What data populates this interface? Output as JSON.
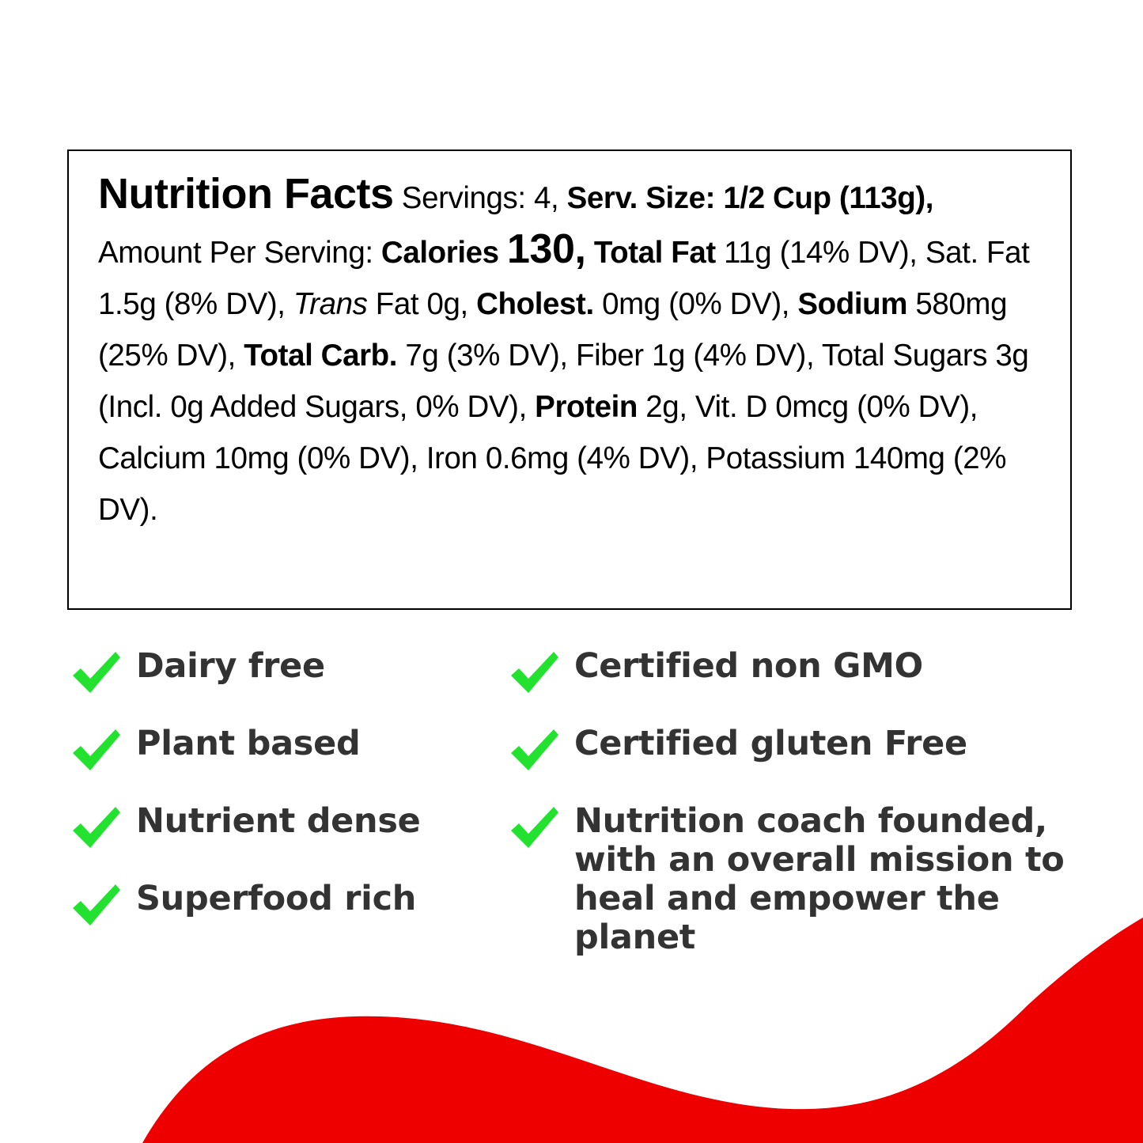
{
  "colors": {
    "wave": "#ee0000",
    "check": "#22e22f",
    "feature_text": "#333333",
    "box_border": "#000000"
  },
  "nutrition": {
    "title": "Nutrition Facts",
    "servings": " Servings: 4, ",
    "serv_size_label": "Serv. Size: 1/2 Cup (113g),",
    "amount_per_serving": " Amount Per Serving: ",
    "calories_label": "Calories ",
    "calories_value": "130,",
    "total_fat_label": " Total Fat",
    "total_fat_value": " 11g (14% DV), Sat. Fat 1.5g (8% DV), ",
    "trans_label": "Trans",
    "trans_value": " Fat 0g, ",
    "cholest_label": "Cholest.",
    "cholest_value": " 0mg (0% DV), ",
    "sodium_label": "Sodium",
    "sodium_value": " 580mg (25% DV), ",
    "carb_label": "Total Carb.",
    "carb_value": " 7g (3% DV), Fiber 1g (4% DV), Total Sugars 3g (Incl. 0g Added Sugars, 0% DV), ",
    "protein_label": "Protein",
    "protein_value": " 2g, Vit. D 0mcg (0% DV), Calcium 10mg (0% DV), Iron 0.6mg (4% DV), Potassium 140mg (2% DV)."
  },
  "features": {
    "left": [
      "Dairy free",
      "Plant based",
      "Nutrient dense",
      "Superfood rich"
    ],
    "right": [
      "Certified non GMO",
      "Certified gluten Free",
      "Nutrition coach founded, with an overall mission to heal and empower the planet"
    ]
  }
}
